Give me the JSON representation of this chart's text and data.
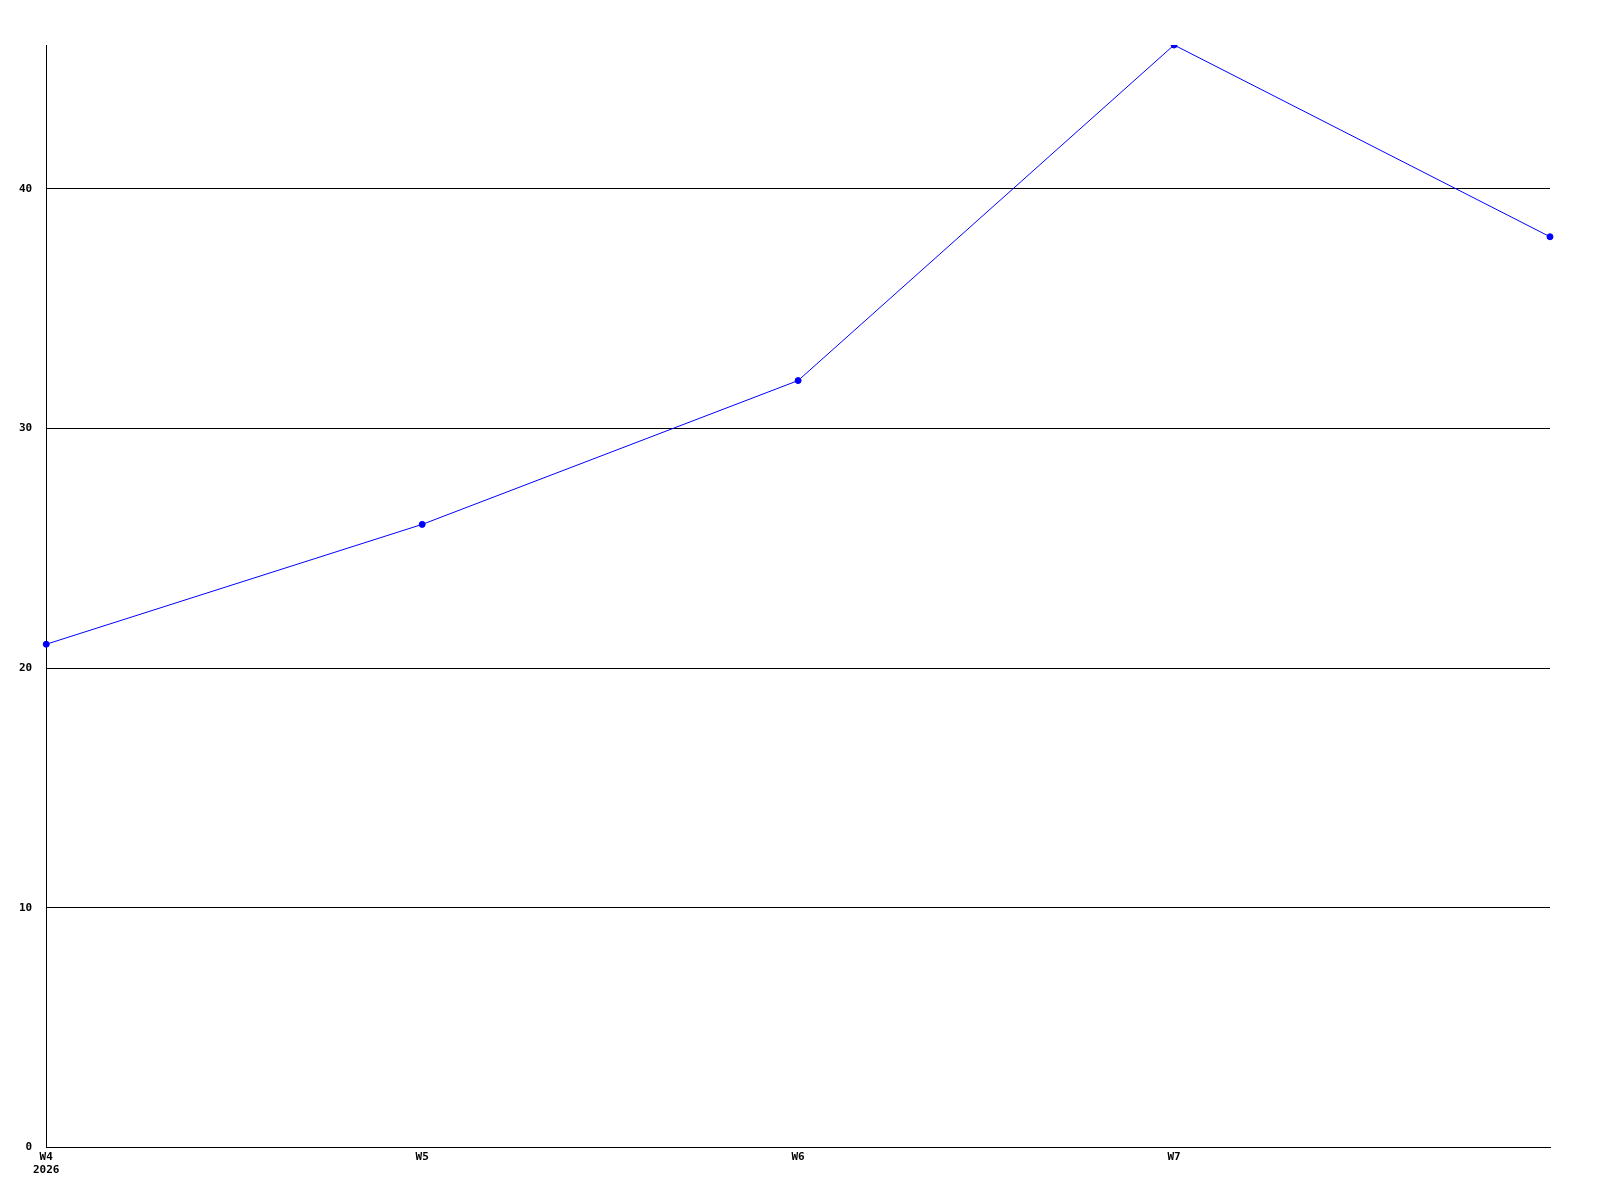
{
  "chart_data": {
    "type": "line",
    "categories": [
      "W4\n2026",
      "W5",
      "W6",
      "W7",
      null
    ],
    "series": [
      {
        "color": "#0000ff",
        "values": [
          21,
          26,
          32,
          46,
          38
        ]
      }
    ],
    "ylim": [
      0,
      46
    ],
    "yticks": [
      0,
      10,
      20,
      30,
      40
    ],
    "grid": "y",
    "marker": "circle",
    "legend": false
  }
}
